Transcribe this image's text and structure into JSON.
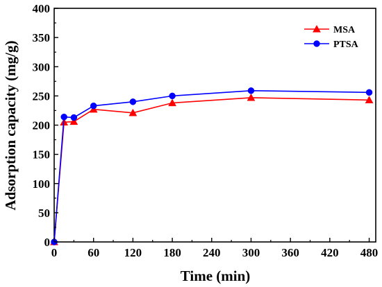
{
  "chart_data": {
    "type": "line",
    "xlabel": "Time (min)",
    "ylabel": "Adsorption capacity (mg/g)",
    "xlim": [
      0,
      490
    ],
    "ylim": [
      0,
      400
    ],
    "xticks": [
      0,
      60,
      120,
      180,
      240,
      300,
      360,
      420,
      480
    ],
    "yticks": [
      0,
      50,
      100,
      150,
      200,
      250,
      300,
      350,
      400
    ],
    "grid": false,
    "legend_position": "top-right",
    "series": [
      {
        "name": "MSA",
        "color": "#ff0000",
        "marker": "triangle",
        "x": [
          0,
          15,
          30,
          60,
          120,
          180,
          300,
          480
        ],
        "y": [
          0,
          205,
          206,
          227,
          221,
          238,
          247,
          243
        ]
      },
      {
        "name": "PTSA",
        "color": "#0000ff",
        "marker": "circle",
        "x": [
          0,
          15,
          30,
          60,
          120,
          180,
          300,
          480
        ],
        "y": [
          0,
          214,
          213,
          233,
          240,
          250,
          259,
          256
        ]
      }
    ]
  }
}
